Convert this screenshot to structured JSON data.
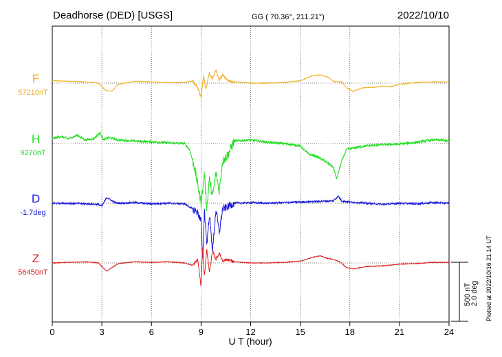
{
  "header": {
    "station": "Deadhorse (DED)  [USGS]",
    "coords": "GG ( 70.36°, 211.21°)",
    "date": "2022/10/10"
  },
  "footer": {
    "plotted": "Plotted at 2022/10/16 21:14 UT"
  },
  "chart_data": {
    "type": "line",
    "title": "",
    "xlabel": "U T (hour)",
    "ylabel": "",
    "xlim": [
      0,
      24
    ],
    "xticks": [
      "0",
      "3",
      "6",
      "9",
      "12",
      "15",
      "18",
      "21",
      "24"
    ],
    "grid": true,
    "scale_bar": {
      "label1": "500 nT",
      "label2": "2.0 deg"
    },
    "series": [
      {
        "name": "F",
        "baseline": "57210nT",
        "color": "#f0b020",
        "x": [
          0,
          1,
          2,
          2.8,
          3.2,
          3.6,
          4,
          5,
          6,
          7,
          8,
          8.5,
          8.8,
          9.0,
          9.15,
          9.3,
          9.5,
          9.7,
          9.9,
          10.1,
          10.3,
          10.6,
          11,
          11.5,
          12,
          13,
          14,
          15,
          15.7,
          16.2,
          16.7,
          17,
          17.5,
          17.8,
          18.2,
          18.8,
          19.5,
          20,
          20.5,
          21,
          22,
          23,
          24
        ],
        "y": [
          20,
          15,
          10,
          0,
          -60,
          -70,
          -10,
          15,
          10,
          5,
          5,
          20,
          -40,
          -120,
          60,
          -50,
          80,
          40,
          110,
          20,
          70,
          20,
          10,
          5,
          0,
          0,
          5,
          20,
          60,
          70,
          50,
          15,
          10,
          -40,
          -70,
          -40,
          -35,
          -25,
          -30,
          -10,
          5,
          10,
          10
        ]
      },
      {
        "name": "H",
        "baseline": "9270nT",
        "color": "#22dd22",
        "x": [
          0,
          0.5,
          1,
          1.5,
          2,
          2.5,
          2.9,
          3.1,
          3.4,
          4,
          5,
          6,
          7,
          8,
          8.3,
          8.6,
          8.8,
          9.0,
          9.1,
          9.2,
          9.35,
          9.5,
          9.7,
          9.9,
          10.1,
          10.3,
          10.6,
          11,
          12,
          13,
          14,
          15,
          15.5,
          16,
          16.5,
          17,
          17.2,
          17.5,
          17.8,
          18.5,
          19,
          20,
          21,
          22,
          23,
          23.5,
          24
        ],
        "y": [
          40,
          60,
          40,
          70,
          30,
          40,
          90,
          30,
          50,
          30,
          20,
          15,
          5,
          0,
          -50,
          -200,
          -350,
          -500,
          -400,
          -250,
          -550,
          -300,
          -450,
          -250,
          -400,
          -150,
          -100,
          20,
          30,
          10,
          0,
          -20,
          -90,
          -110,
          -150,
          -200,
          -300,
          -150,
          -50,
          -30,
          -20,
          -10,
          -5,
          10,
          30,
          30,
          20
        ]
      },
      {
        "name": "D",
        "baseline": "-1.7deg",
        "color": "#1a1ad8",
        "x": [
          0,
          1,
          2,
          2.8,
          3.0,
          3.3,
          3.5,
          3.8,
          4,
          5,
          6,
          7,
          8,
          8.4,
          8.8,
          9.0,
          9.1,
          9.2,
          9.35,
          9.5,
          9.7,
          9.9,
          10.1,
          10.3,
          10.6,
          11,
          12,
          13,
          14,
          15,
          16,
          17,
          17.3,
          17.5,
          18,
          19,
          20,
          21,
          22,
          23,
          24
        ],
        "y": [
          0,
          0,
          -5,
          -10,
          -25,
          50,
          30,
          5,
          0,
          5,
          -5,
          0,
          -5,
          -40,
          -80,
          -150,
          -500,
          -50,
          -350,
          -100,
          -400,
          -50,
          -250,
          -50,
          -30,
          0,
          5,
          0,
          5,
          10,
          15,
          20,
          60,
          20,
          10,
          0,
          -10,
          0,
          -5,
          5,
          0
        ]
      },
      {
        "name": "Z",
        "baseline": "56450nT",
        "color": "#dd2020",
        "x": [
          0,
          1,
          2,
          2.8,
          3.0,
          3.3,
          3.6,
          4,
          5,
          6,
          7,
          8,
          8.5,
          8.8,
          9.0,
          9.1,
          9.2,
          9.35,
          9.5,
          9.7,
          9.9,
          10.1,
          10.3,
          10.6,
          11,
          12,
          13,
          14,
          15,
          15.8,
          16.2,
          16.6,
          17,
          17.4,
          17.8,
          18.2,
          19,
          20,
          21,
          22,
          23,
          24
        ],
        "y": [
          0,
          5,
          10,
          0,
          -30,
          -70,
          -40,
          -5,
          10,
          5,
          10,
          0,
          -20,
          30,
          -200,
          150,
          -120,
          120,
          -80,
          100,
          30,
          80,
          20,
          30,
          10,
          0,
          0,
          5,
          15,
          50,
          60,
          40,
          30,
          10,
          -40,
          -50,
          -30,
          -25,
          -10,
          -5,
          5,
          5
        ]
      }
    ]
  }
}
